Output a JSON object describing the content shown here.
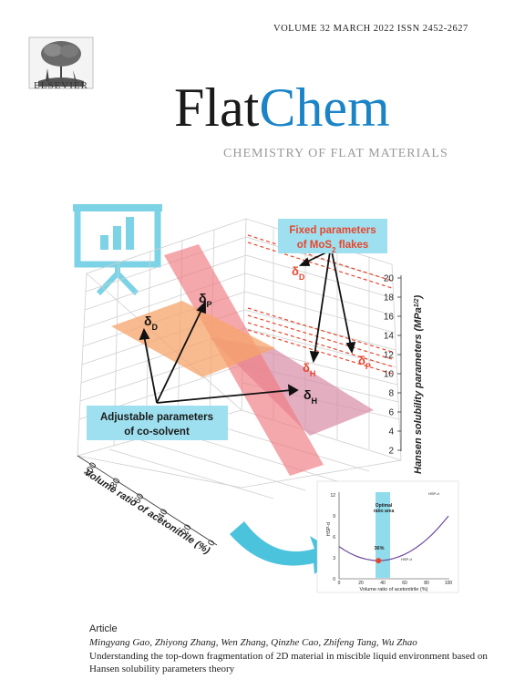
{
  "header": {
    "publisher": "ELSEVIER",
    "meta": "VOLUME 32   MARCH 2022   ISSN 2452-2627",
    "title_part1": "Flat",
    "title_part2": "Chem",
    "subtitle": "CHEMISTRY OF FLAT MATERIALS",
    "title_color_dark": "#1a1a1a",
    "title_color_blue": "#1a84c7"
  },
  "figure": {
    "callout_fixed": [
      "Fixed parameters",
      "of MoS",
      "2",
      " flakes"
    ],
    "callout_adjustable": [
      "Adjustable parameters",
      "of co-solvent"
    ],
    "label_dD": "δ",
    "label_dD_sub": "D",
    "label_dP": "δ",
    "label_dP_sub": "P",
    "label_dH": "δ",
    "label_dH_sub": "H",
    "fixed_dD": "δ",
    "fixed_dD_sub": "D",
    "fixed_dP": "δ",
    "fixed_dP_sub": "P",
    "fixed_dH": "δ",
    "fixed_dH_sub": "H",
    "z_axis_label": "Hansen solubility parameters (MPa",
    "z_axis_unit_sup": "1/2",
    "z_axis_close": ")",
    "z_ticks": [
      "20",
      "18",
      "16",
      "14",
      "12",
      "10",
      "8",
      "6",
      "4",
      "2"
    ],
    "x_axis_label": "Volume ratio of acetonitrile (%)",
    "x_ticks": [
      "100",
      "80",
      "60",
      "40",
      "20",
      "0"
    ],
    "accent_cyan": "#7dd3e6",
    "callout_fill": "#9ee0ef",
    "red_label_color": "#e8452c"
  },
  "inset": {
    "ylabel": "HSP-d",
    "xlabel": "Volume ratio of acetonitrile (%)",
    "annotation_region": [
      "Optimal",
      "ratio area"
    ],
    "annotation_pct": "36%",
    "label_top": "HSP-d",
    "label_bottom": "HSP-d",
    "y_ticks": [
      "12",
      "9",
      "6",
      "3",
      "0"
    ],
    "x_ticks": [
      "0",
      "20",
      "40",
      "60",
      "80",
      "100"
    ]
  },
  "article": {
    "type": "Article",
    "authors": "Mingyang Gao, Zhiyong Zhang, Wen Zhang, Qinzhe Cao, Zhifeng Tang, Wu Zhao",
    "title": "Understanding the top-down fragmentation of 2D material in miscible liquid environment based on Hansen solubility parameters theory"
  }
}
